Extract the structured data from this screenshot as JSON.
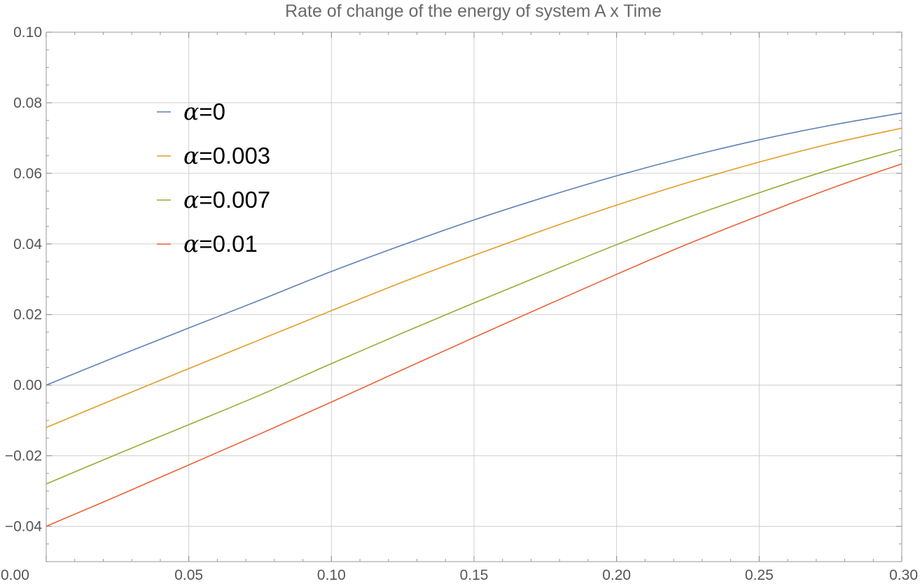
{
  "chart_data": {
    "type": "line",
    "title": "Rate of change of the energy of system A x Time",
    "xlabel": "",
    "ylabel": "",
    "xlim": [
      0,
      0.3
    ],
    "ylim": [
      -0.05,
      0.1
    ],
    "grid": true,
    "legend_position": "upper-left",
    "x_ticks": [
      "0.00",
      "0.05",
      "0.10",
      "0.15",
      "0.20",
      "0.25",
      "0.30"
    ],
    "y_ticks": [
      "−0.04",
      "−0.02",
      "0.00",
      "0.02",
      "0.04",
      "0.06",
      "0.08",
      "0.10"
    ],
    "x": [
      0.0,
      0.025,
      0.05,
      0.075,
      0.1,
      0.125,
      0.15,
      0.175,
      0.2,
      0.225,
      0.25,
      0.275,
      0.3
    ],
    "series": [
      {
        "name": "α=0",
        "color": "#5e81b5",
        "values": [
          0.0,
          0.0082,
          0.0162,
          0.0241,
          0.0322,
          0.0397,
          0.0468,
          0.0533,
          0.0593,
          0.0647,
          0.0695,
          0.0736,
          0.0771
        ]
      },
      {
        "name": "α=0.003",
        "color": "#e19c24",
        "values": [
          -0.012,
          -0.0036,
          0.0047,
          0.0129,
          0.0211,
          0.0292,
          0.0368,
          0.0441,
          0.051,
          0.0574,
          0.0632,
          0.0684,
          0.0728
        ]
      },
      {
        "name": "α=0.007",
        "color": "#8fb032",
        "values": [
          -0.028,
          -0.0195,
          -0.0112,
          -0.0028,
          0.0061,
          0.0148,
          0.0233,
          0.0316,
          0.0398,
          0.0475,
          0.0545,
          0.0611,
          0.0669
        ]
      },
      {
        "name": "α=0.01",
        "color": "#eb6235",
        "values": [
          -0.04,
          -0.0314,
          -0.0226,
          -0.0138,
          -0.0048,
          0.0044,
          0.0135,
          0.0225,
          0.0314,
          0.04,
          0.048,
          0.0557,
          0.0627
        ]
      }
    ]
  }
}
